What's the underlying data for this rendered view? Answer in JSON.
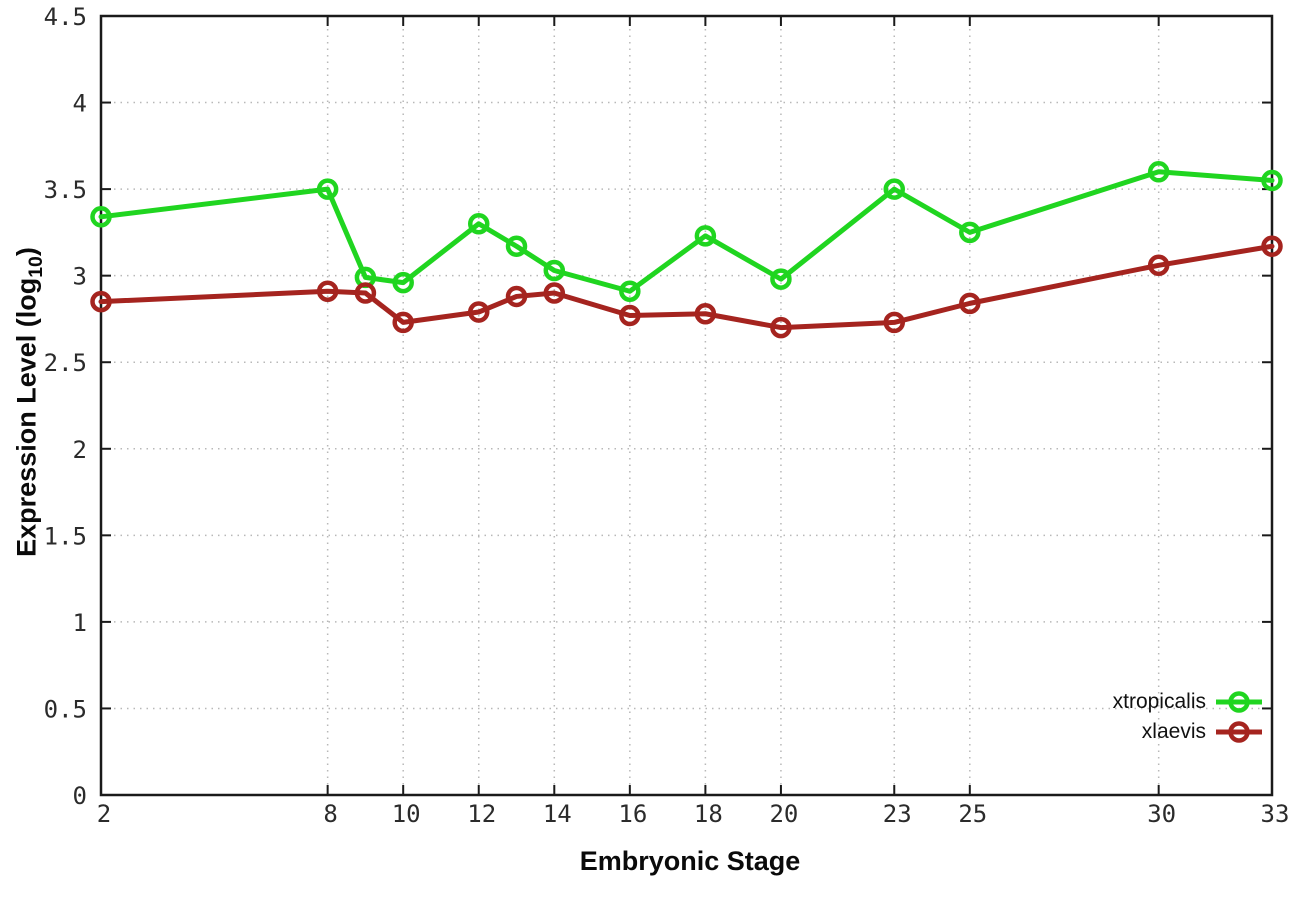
{
  "figure": {
    "background": "#ffffff",
    "axis_color": "#1a1a1a",
    "grid_color": "#b8b8b8",
    "tick_label_color": "#2b2b2b"
  },
  "chart_data": {
    "type": "line",
    "title": "",
    "xlabel": "Embryonic Stage",
    "ylabel": "Expression Level (log10)",
    "ylabel_parts": {
      "pre": "Expression Level (log",
      "sub": "10",
      "post": ")"
    },
    "x": [
      2,
      8,
      9,
      10,
      12,
      13,
      14,
      16,
      18,
      20,
      23,
      25,
      30,
      33
    ],
    "series": [
      {
        "name": "xtropicalis",
        "color": "#20d520",
        "values": [
          3.34,
          3.5,
          2.99,
          2.96,
          3.3,
          3.17,
          3.03,
          2.91,
          3.23,
          2.98,
          3.5,
          3.25,
          3.6,
          3.55
        ]
      },
      {
        "name": "xlaevis",
        "color": "#a5241f",
        "values": [
          2.85,
          2.91,
          2.9,
          2.73,
          2.79,
          2.88,
          2.9,
          2.77,
          2.78,
          2.7,
          2.73,
          2.84,
          3.06,
          3.17
        ]
      }
    ],
    "xticks": [
      2,
      8,
      10,
      12,
      14,
      16,
      18,
      20,
      23,
      25,
      30,
      33
    ],
    "yticks": [
      0,
      0.5,
      1,
      1.5,
      2,
      2.5,
      3,
      3.5,
      4,
      4.5
    ],
    "xlim": [
      2,
      33
    ],
    "ylim": [
      0,
      4.5
    ],
    "grid": true,
    "legend_position": "bottom-right",
    "marker": "open-circle"
  }
}
